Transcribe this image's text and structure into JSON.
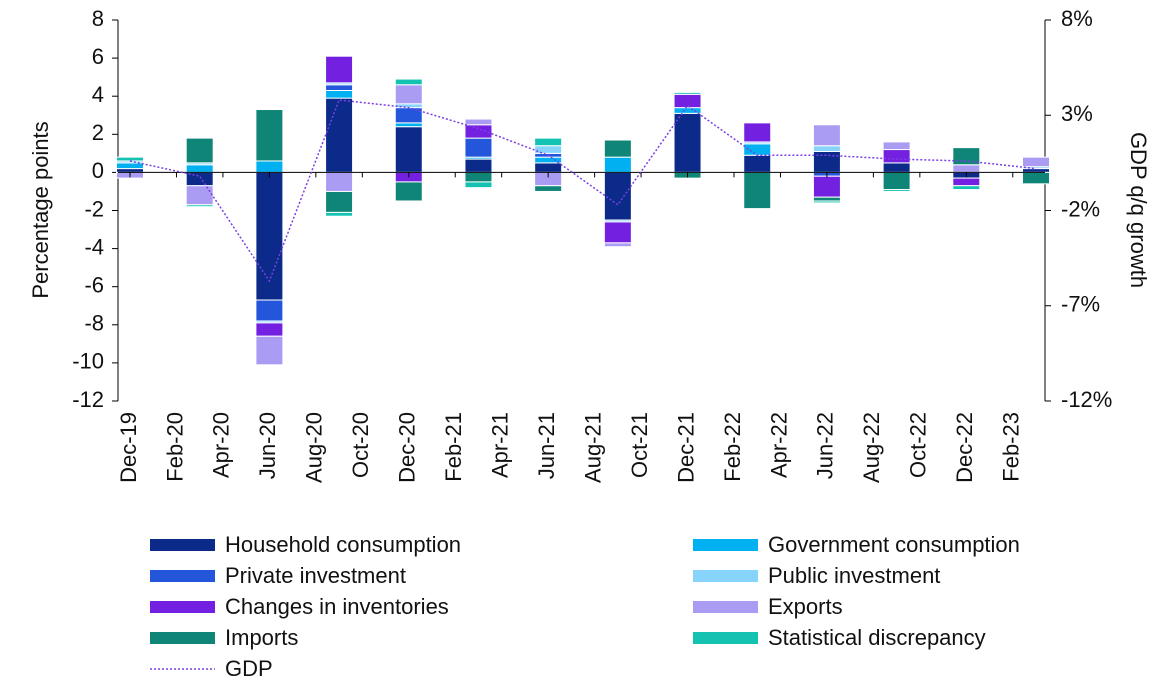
{
  "chart_data": {
    "type": "bar",
    "stacked": true,
    "y_title": "Percentage points",
    "y2_title": "GDP q/q growth",
    "x": [
      "Dec-19",
      "Mar-20",
      "Jun-20",
      "Sep-20",
      "Dec-20",
      "Mar-21",
      "Jun-21",
      "Sep-21",
      "Dec-21",
      "Mar-22",
      "Jun-22",
      "Sep-22",
      "Dec-22",
      "Mar-23"
    ],
    "xticks": [
      "Dec-19",
      "Feb-20",
      "Apr-20",
      "Jun-20",
      "Aug-20",
      "Oct-20",
      "Dec-20",
      "Feb-21",
      "Apr-21",
      "Jun-21",
      "Aug-21",
      "Oct-21",
      "Dec-21",
      "Feb-22",
      "Apr-22",
      "Jun-22",
      "Aug-22",
      "Oct-22",
      "Dec-22",
      "Feb-23"
    ],
    "ylim": [
      -12,
      8
    ],
    "yticks": [
      -12,
      -10,
      -8,
      -6,
      -4,
      -2,
      0,
      2,
      4,
      6,
      8
    ],
    "y2lim": [
      -12,
      8
    ],
    "y2ticks": [
      {
        "value": -12,
        "label": "-12%"
      },
      {
        "value": -7,
        "label": "-7%"
      },
      {
        "value": -2,
        "label": "-2%"
      },
      {
        "value": 3,
        "label": "3%"
      },
      {
        "value": 8,
        "label": "8%"
      }
    ],
    "series": [
      {
        "name": "Household consumption",
        "color": "#0c2a8a",
        "values": [
          0.2,
          -0.7,
          -6.7,
          3.9,
          2.4,
          0.7,
          0.5,
          -2.5,
          3.1,
          0.9,
          1.1,
          0.5,
          -0.3,
          0.2
        ]
      },
      {
        "name": "Government consumption",
        "color": "#00b0f0",
        "values": [
          0.3,
          0.4,
          0.6,
          0.4,
          0.2,
          0.1,
          0.3,
          0.8,
          0.3,
          0.6,
          0,
          0,
          0,
          0
        ]
      },
      {
        "name": "Private investment",
        "color": "#2456dc",
        "values": [
          0,
          0,
          -1.1,
          0.3,
          0.8,
          1.0,
          0.2,
          0,
          0,
          0,
          -0.2,
          0,
          0,
          0
        ]
      },
      {
        "name": "Public investment",
        "color": "#86d3fb",
        "values": [
          0.1,
          0.1,
          -0.1,
          0.1,
          0.2,
          0,
          0.4,
          -0.1,
          0,
          0.1,
          0.3,
          0,
          0,
          0.1
        ]
      },
      {
        "name": "Changes in inventories",
        "color": "#7420e0",
        "values": [
          0,
          0,
          -0.7,
          1.4,
          -0.5,
          0.7,
          0,
          -1.1,
          0.7,
          1.0,
          -1.1,
          0.7,
          -0.4,
          0
        ]
      },
      {
        "name": "Exports",
        "color": "#ab9cf3",
        "values": [
          -0.3,
          -1.0,
          -1.5,
          -1.0,
          1.0,
          0.3,
          -0.7,
          -0.2,
          0,
          0,
          1.1,
          0.4,
          0.4,
          0.5
        ]
      },
      {
        "name": "Imports",
        "color": "#0e8576",
        "values": [
          0,
          1.3,
          2.7,
          -1.1,
          -1.0,
          -0.5,
          -0.3,
          0.9,
          -0.3,
          -1.9,
          -0.2,
          -0.9,
          0.9,
          -0.6
        ]
      },
      {
        "name": "Statistical discrepancy",
        "color": "#14c2b2",
        "values": [
          0.2,
          -0.1,
          0,
          -0.2,
          0.3,
          -0.3,
          0.4,
          0,
          0.1,
          0,
          -0.1,
          -0.1,
          -0.2,
          0
        ]
      },
      {
        "name": "GDP",
        "color": "#7b3fe4",
        "type": "line",
        "axis": "y2",
        "values": [
          0.6,
          -0.2,
          -5.7,
          3.8,
          3.4,
          2.3,
          0.9,
          -1.7,
          3.5,
          0.9,
          0.9,
          0.7,
          0.6,
          0.2
        ]
      }
    ]
  }
}
